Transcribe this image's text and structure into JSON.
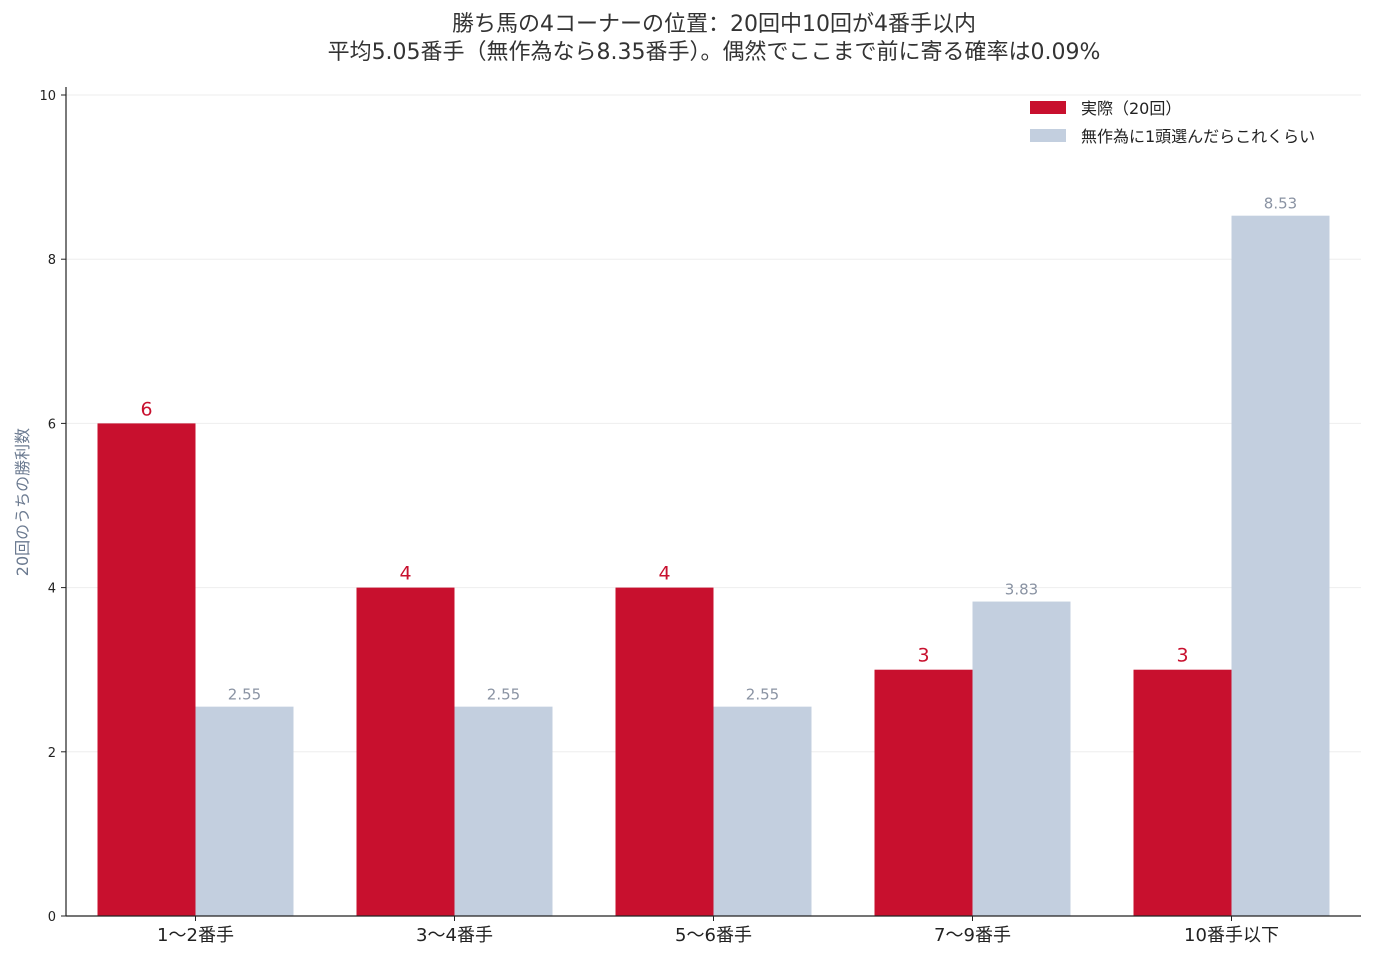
{
  "chart_data": {
    "type": "bar",
    "title": "勝ち馬の4コーナーの位置：20回中10回が4番手以内",
    "subtitle": "平均5.05番手（無作為なら8.35番手）。偶然でここまで前に寄る確率は0.09%",
    "xlabel": "",
    "ylabel": "20回のうちの勝利数",
    "ylim": [
      0,
      10
    ],
    "yticks": [
      0,
      2,
      4,
      6,
      8,
      10
    ],
    "grid": true,
    "legend_position": "top-right",
    "categories": [
      "1〜2番手",
      "3〜4番手",
      "5〜6番手",
      "7〜9番手",
      "10番手以下"
    ],
    "series": [
      {
        "name": "実際（20回）",
        "color": "#c8102e",
        "values": [
          6,
          4,
          4,
          3,
          3
        ],
        "labels": [
          "6",
          "4",
          "4",
          "3",
          "3"
        ]
      },
      {
        "name": "無作為に1頭選んだらこれくらい",
        "color": "#c3cfdf",
        "values": [
          2.55,
          2.55,
          2.55,
          3.83,
          8.53
        ],
        "labels": [
          "2.55",
          "2.55",
          "2.55",
          "3.83",
          "8.53"
        ]
      }
    ]
  }
}
